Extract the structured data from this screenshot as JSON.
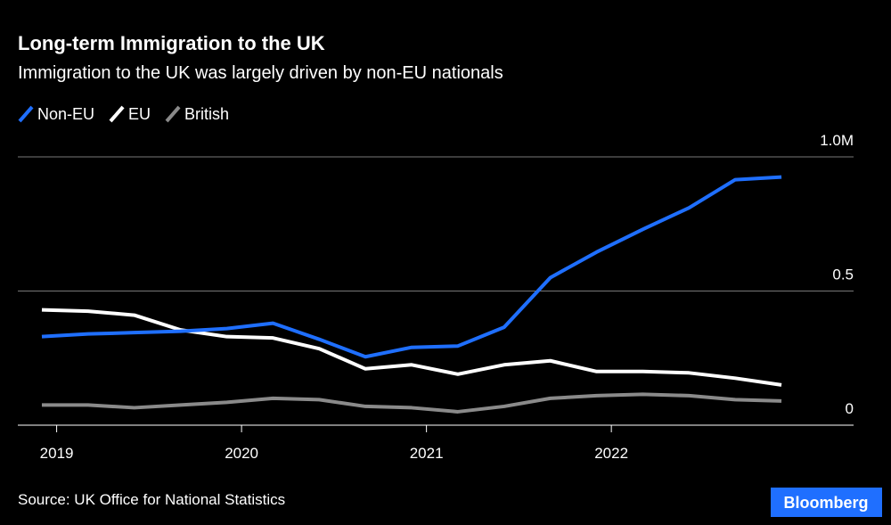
{
  "chart_data": {
    "type": "line",
    "title": "Long-term Immigration to the UK",
    "subtitle": "Immigration to the UK was largely driven by non-EU nationals",
    "source": "Source: UK Office for National Statistics",
    "logo": "Bloomberg",
    "x": [
      2018.92,
      2019.17,
      2019.42,
      2019.67,
      2019.92,
      2020.17,
      2020.42,
      2020.67,
      2020.92,
      2021.17,
      2021.42,
      2021.67,
      2021.92,
      2022.17,
      2022.42,
      2022.67,
      2022.92
    ],
    "xlim": [
      2018.79,
      2023.31
    ],
    "xticks": [
      2019,
      2020,
      2021,
      2022
    ],
    "ylim": [
      0,
      1.0
    ],
    "yticks": [
      0,
      0.5,
      {
        "value": 1.0,
        "label": "1.0M"
      }
    ],
    "grid": true,
    "series": [
      {
        "name": "Non-EU",
        "color": "#1f6fff",
        "values": [
          0.33,
          0.34,
          0.345,
          0.35,
          0.36,
          0.38,
          0.32,
          0.255,
          0.29,
          0.295,
          0.365,
          0.55,
          0.645,
          0.73,
          0.81,
          0.915,
          0.925
        ]
      },
      {
        "name": "EU",
        "color": "#ffffff",
        "values": [
          0.43,
          0.425,
          0.41,
          0.355,
          0.33,
          0.325,
          0.285,
          0.21,
          0.225,
          0.19,
          0.225,
          0.24,
          0.2,
          0.2,
          0.195,
          0.175,
          0.15
        ]
      },
      {
        "name": "British",
        "color": "#8a8a8a",
        "values": [
          0.075,
          0.075,
          0.065,
          0.075,
          0.085,
          0.1,
          0.095,
          0.07,
          0.065,
          0.05,
          0.07,
          0.1,
          0.11,
          0.115,
          0.11,
          0.095,
          0.09
        ]
      }
    ]
  }
}
